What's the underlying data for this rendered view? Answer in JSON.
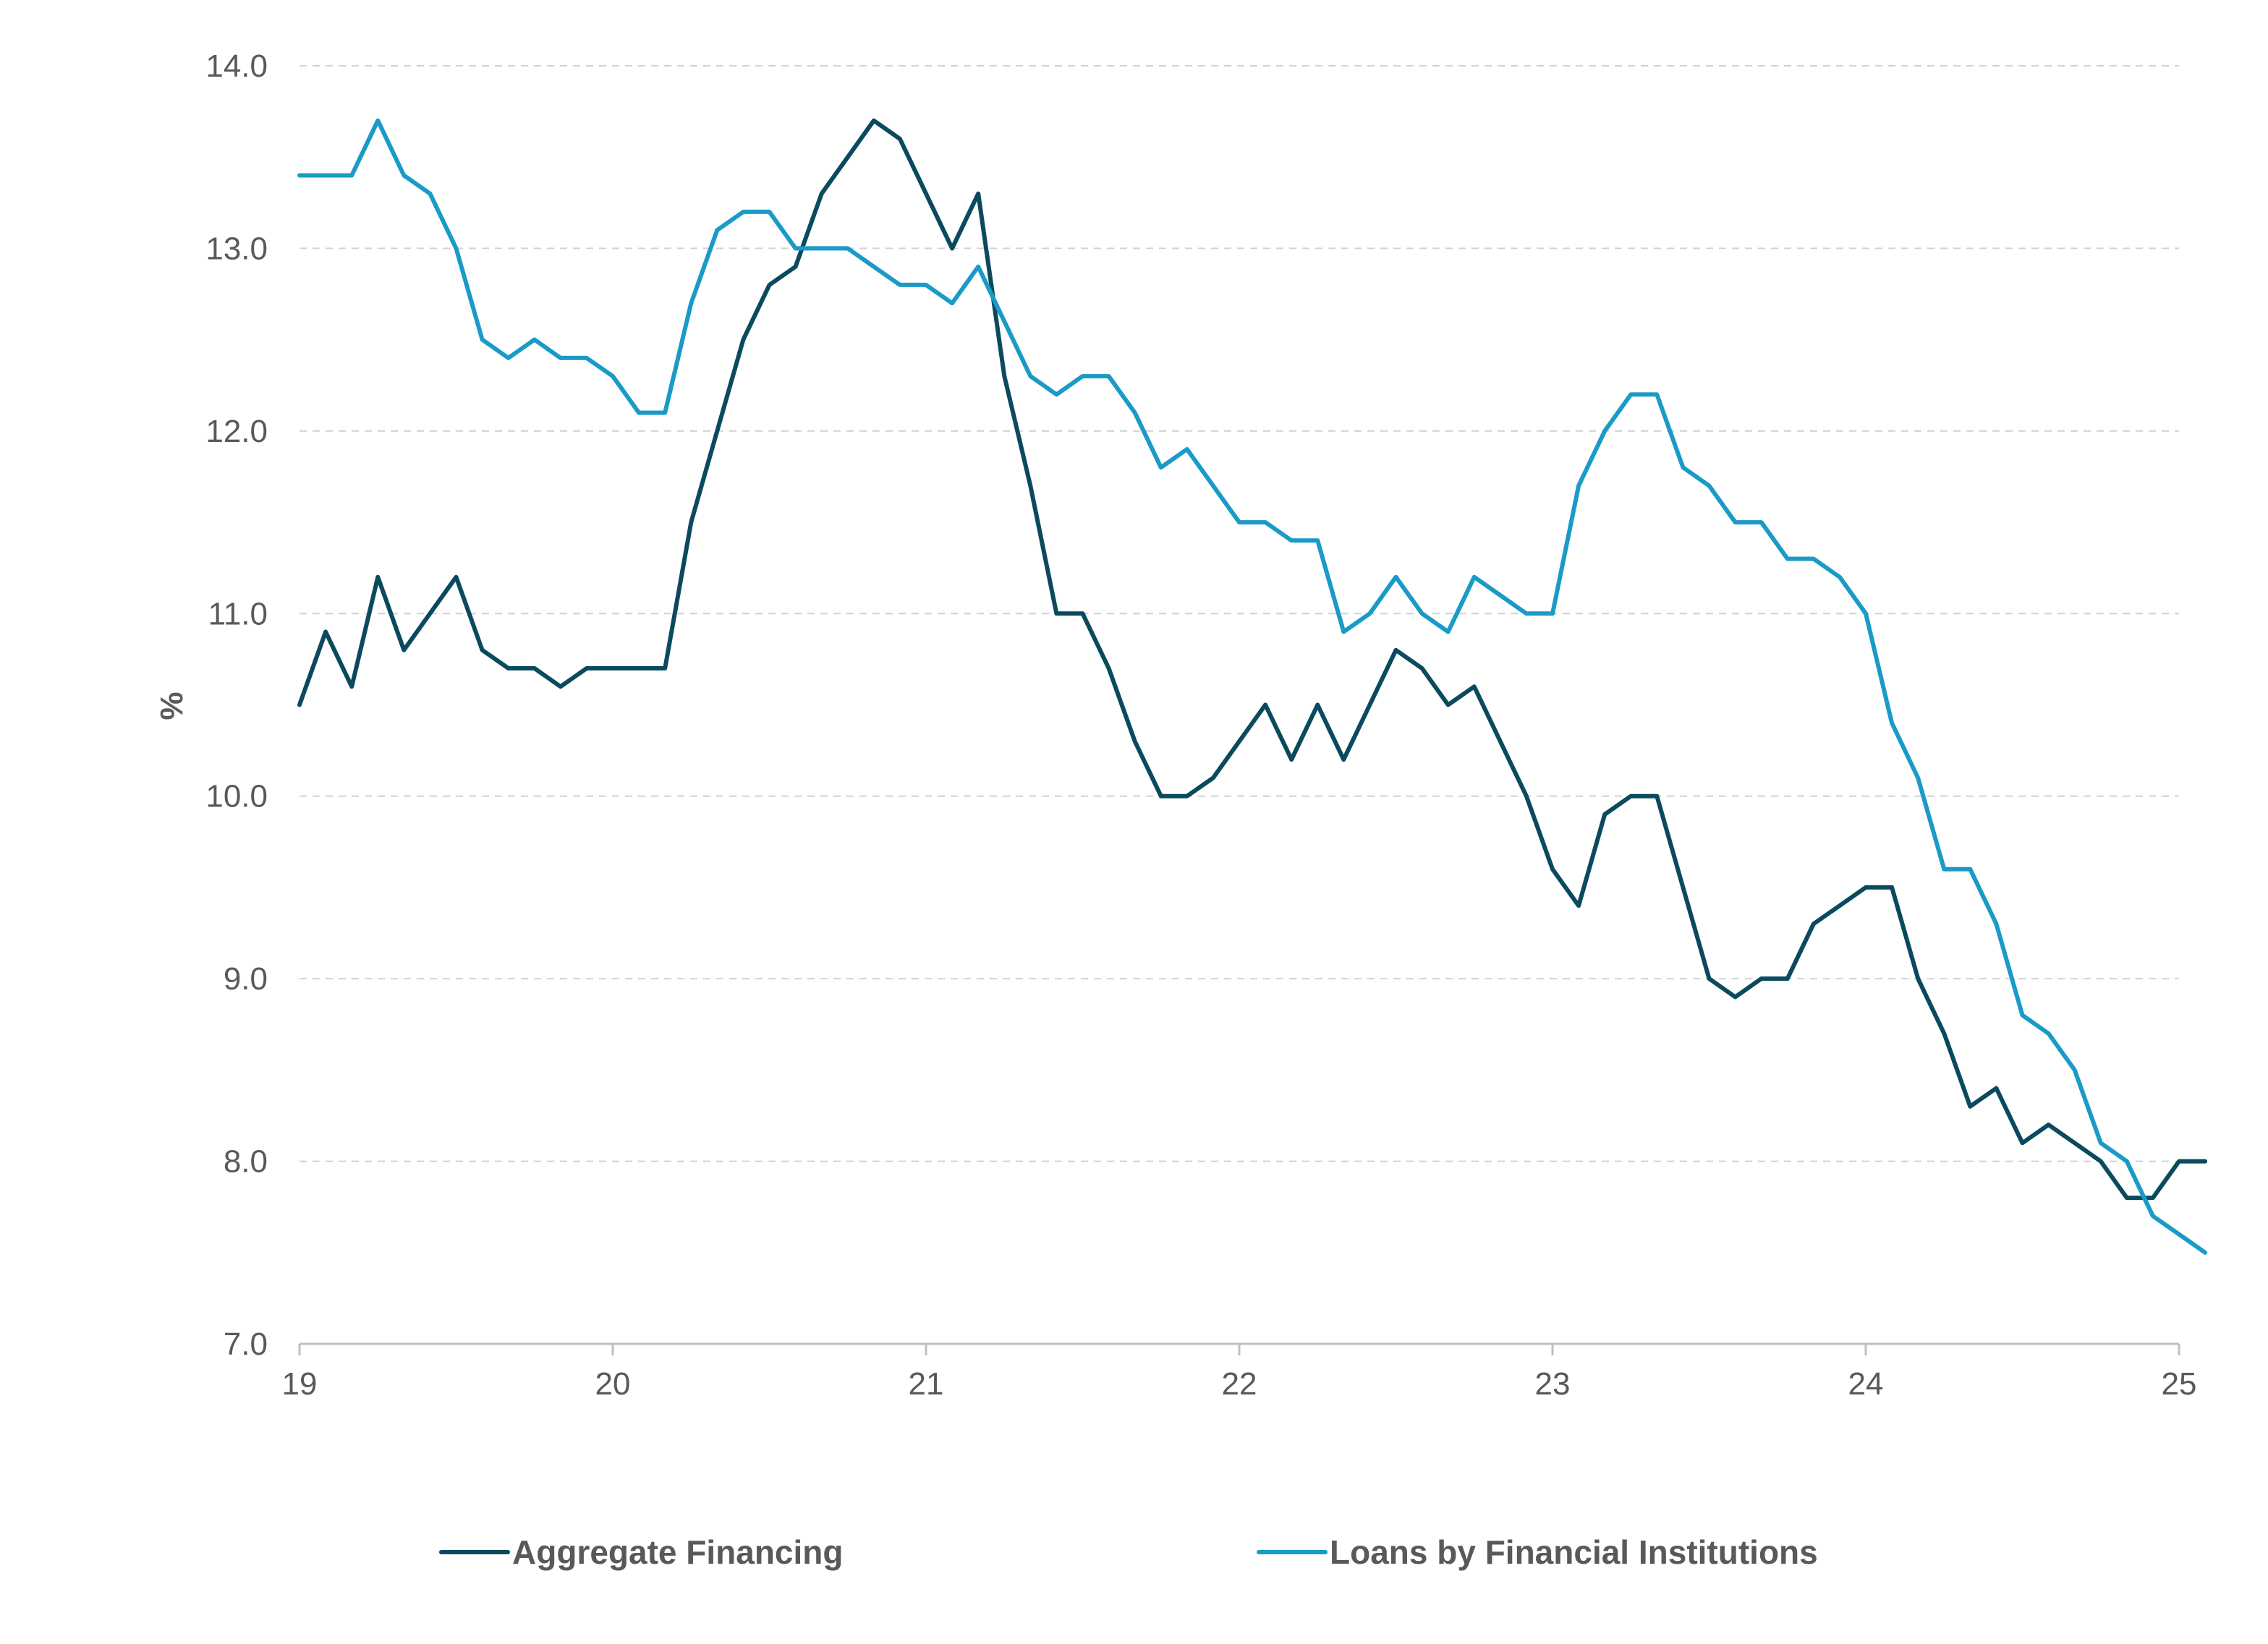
{
  "chart_data": {
    "type": "line",
    "ylabel": "%",
    "ylim": [
      7.0,
      14.0
    ],
    "yticks": [
      "7.0",
      "8.0",
      "9.0",
      "10.0",
      "11.0",
      "12.0",
      "13.0",
      "14.0"
    ],
    "xticks": [
      "19",
      "20",
      "21",
      "22",
      "23",
      "24",
      "25"
    ],
    "grid": true,
    "legend_position": "bottom",
    "series": [
      {
        "name": "Aggregate Financing",
        "color": "#0b4a5e",
        "values": [
          10.5,
          10.9,
          10.6,
          11.2,
          10.8,
          11.0,
          11.2,
          10.8,
          10.7,
          10.7,
          10.6,
          10.7,
          10.7,
          10.7,
          10.7,
          11.5,
          12.0,
          12.5,
          12.8,
          12.9,
          13.3,
          13.5,
          13.7,
          13.6,
          13.3,
          13.0,
          13.3,
          12.3,
          11.7,
          11.0,
          11.0,
          10.7,
          10.3,
          10.0,
          10.0,
          10.1,
          10.3,
          10.5,
          10.2,
          10.5,
          10.2,
          10.5,
          10.8,
          10.7,
          10.5,
          10.6,
          10.3,
          10.0,
          9.6,
          9.4,
          9.9,
          10.0,
          10.0,
          9.5,
          9.0,
          8.9,
          9.0,
          9.0,
          9.3,
          9.4,
          9.5,
          9.5,
          9.0,
          8.7,
          8.3,
          8.4,
          8.1,
          8.2,
          8.1,
          8.0,
          7.8,
          7.8,
          8.0,
          8.0
        ]
      },
      {
        "name": "Loans by Financial Institutions",
        "color": "#1a9bc7",
        "values": [
          13.4,
          13.4,
          13.4,
          13.7,
          13.4,
          13.3,
          13.0,
          12.5,
          12.4,
          12.5,
          12.4,
          12.4,
          12.3,
          12.1,
          12.1,
          12.7,
          13.1,
          13.2,
          13.2,
          13.0,
          13.0,
          13.0,
          12.9,
          12.8,
          12.8,
          12.7,
          12.9,
          12.6,
          12.3,
          12.2,
          12.3,
          12.3,
          12.1,
          11.8,
          11.9,
          11.7,
          11.5,
          11.5,
          11.4,
          11.4,
          10.9,
          11.0,
          11.2,
          11.0,
          10.9,
          11.2,
          11.1,
          11.0,
          11.0,
          11.7,
          12.0,
          12.2,
          12.2,
          11.8,
          11.7,
          11.5,
          11.5,
          11.3,
          11.3,
          11.2,
          11.0,
          10.4,
          10.1,
          9.6,
          9.6,
          9.3,
          8.8,
          8.7,
          8.5,
          8.1,
          8.0,
          7.7,
          7.6,
          7.5
        ]
      }
    ]
  }
}
